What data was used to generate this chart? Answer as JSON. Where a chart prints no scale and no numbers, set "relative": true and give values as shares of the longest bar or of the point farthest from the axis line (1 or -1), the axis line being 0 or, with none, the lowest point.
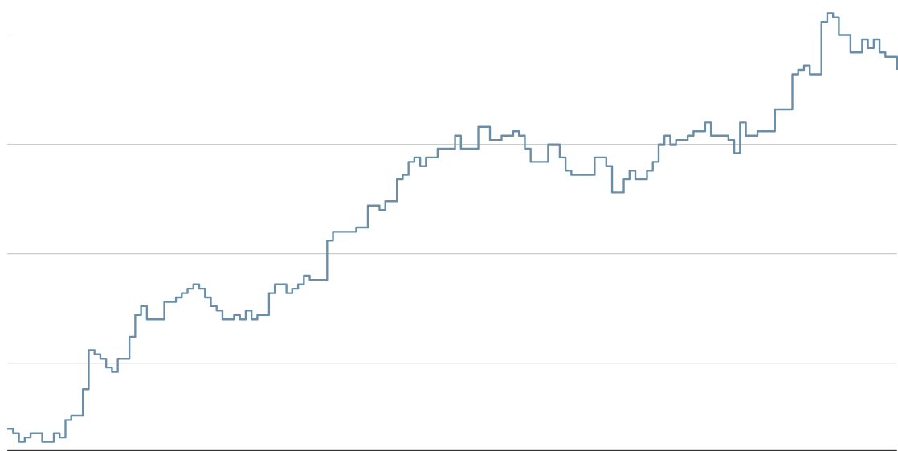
{
  "chart_data": {
    "type": "step",
    "relative": true,
    "grid": "y",
    "color": "#6a8ea8",
    "categories": [
      null,
      null,
      null,
      null,
      null,
      null,
      null,
      null,
      null,
      null,
      null,
      null,
      null,
      null,
      null,
      null,
      null,
      null,
      null,
      null,
      null,
      null,
      null,
      null,
      null,
      null,
      null,
      null,
      null,
      null,
      null,
      null,
      null,
      null,
      null,
      null,
      null,
      null,
      null,
      null,
      null,
      null,
      null,
      null,
      null,
      null,
      null,
      null,
      null,
      null,
      null,
      null,
      null,
      null,
      null,
      null,
      null,
      null,
      null,
      null,
      null,
      null,
      null,
      null,
      null,
      null,
      null,
      null,
      null,
      null,
      null,
      null,
      null,
      null,
      null,
      null,
      null,
      null,
      null,
      null,
      null,
      null,
      null,
      null,
      null,
      null,
      null,
      null,
      null,
      null,
      null,
      null,
      null,
      null,
      null,
      null,
      null,
      null,
      null,
      null,
      null,
      null,
      null,
      null,
      null,
      null,
      null,
      null,
      null,
      null,
      null,
      null,
      null,
      null,
      null,
      null,
      null,
      null,
      null,
      null,
      null,
      null,
      null,
      null,
      null,
      null,
      null,
      null,
      null,
      null,
      null,
      null,
      null,
      null,
      null,
      null,
      null,
      null,
      null,
      null,
      null,
      null,
      null,
      null,
      null,
      null,
      null,
      null,
      null,
      null,
      null,
      null,
      null,
      null
    ],
    "values": [
      0.05,
      0.04,
      0.02,
      0.03,
      0.04,
      0.04,
      0.02,
      0.02,
      0.04,
      0.03,
      0.07,
      0.08,
      0.08,
      0.14,
      0.23,
      0.22,
      0.21,
      0.19,
      0.18,
      0.21,
      0.21,
      0.26,
      0.31,
      0.33,
      0.3,
      0.3,
      0.3,
      0.34,
      0.34,
      0.35,
      0.36,
      0.37,
      0.38,
      0.37,
      0.35,
      0.33,
      0.32,
      0.3,
      0.3,
      0.31,
      0.3,
      0.32,
      0.3,
      0.31,
      0.31,
      0.36,
      0.38,
      0.38,
      0.36,
      0.37,
      0.38,
      0.4,
      0.39,
      0.39,
      0.39,
      0.48,
      0.5,
      0.5,
      0.5,
      0.5,
      0.51,
      0.51,
      0.56,
      0.56,
      0.55,
      0.57,
      0.57,
      0.62,
      0.63,
      0.66,
      0.67,
      0.65,
      0.67,
      0.67,
      0.69,
      0.69,
      0.69,
      0.72,
      0.69,
      0.69,
      0.69,
      0.74,
      0.74,
      0.71,
      0.71,
      0.72,
      0.72,
      0.73,
      0.72,
      0.69,
      0.66,
      0.66,
      0.66,
      0.7,
      0.7,
      0.67,
      0.64,
      0.63,
      0.63,
      0.63,
      0.63,
      0.67,
      0.67,
      0.65,
      0.59,
      0.59,
      0.62,
      0.64,
      0.62,
      0.62,
      0.64,
      0.66,
      0.7,
      0.72,
      0.7,
      0.71,
      0.71,
      0.72,
      0.73,
      0.73,
      0.75,
      0.72,
      0.72,
      0.72,
      0.71,
      0.68,
      0.75,
      0.72,
      0.72,
      0.73,
      0.73,
      0.73,
      0.78,
      0.78,
      0.78,
      0.86,
      0.87,
      0.88,
      0.86,
      0.86,
      0.98,
      1,
      0.99,
      0.95,
      0.95,
      0.91,
      0.91,
      0.94,
      0.92,
      0.94,
      0.91,
      0.9,
      0.9,
      0.87
    ]
  }
}
